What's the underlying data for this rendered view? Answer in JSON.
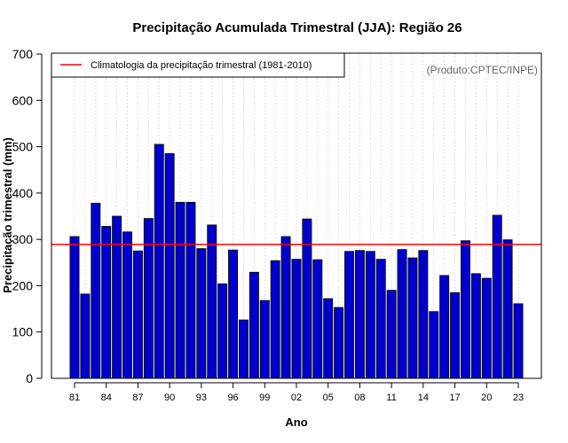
{
  "chart_data": {
    "type": "bar",
    "title": "Precipitação Acumulada Trimestral (JJA): Região 26",
    "xlabel": "Ano",
    "ylabel": "Precipitação trimestral (mm)",
    "ylim": [
      0,
      700
    ],
    "yticks": [
      0,
      100,
      200,
      300,
      400,
      500,
      600,
      700
    ],
    "years": [
      1981,
      1982,
      1983,
      1984,
      1985,
      1986,
      1987,
      1988,
      1989,
      1990,
      1991,
      1992,
      1993,
      1994,
      1995,
      1996,
      1997,
      1998,
      1999,
      2000,
      2001,
      2002,
      2003,
      2004,
      2005,
      2006,
      2007,
      2008,
      2009,
      2010,
      2011,
      2012,
      2013,
      2014,
      2015,
      2016,
      2017,
      2018,
      2019,
      2020,
      2021,
      2022,
      2023
    ],
    "values": [
      306,
      182,
      378,
      328,
      350,
      316,
      275,
      345,
      505,
      485,
      380,
      380,
      280,
      331,
      204,
      277,
      126,
      229,
      168,
      254,
      306,
      257,
      344,
      256,
      172,
      153,
      274,
      276,
      274,
      257,
      190,
      278,
      260,
      276,
      144,
      222,
      185,
      297,
      226,
      216,
      352,
      299,
      161
    ],
    "xtick_years": [
      1981,
      1984,
      1987,
      1990,
      1993,
      1996,
      1999,
      2002,
      2005,
      2008,
      2011,
      2014,
      2017,
      2020,
      2023
    ],
    "xtick_labels": [
      "81",
      "84",
      "87",
      "90",
      "93",
      "96",
      "99",
      "02",
      "05",
      "08",
      "11",
      "14",
      "17",
      "20",
      "23"
    ],
    "climatology": 289,
    "legend": "Climatologia da precipitação trimestral (1981-2010)",
    "source": "(Produto:CPTEC/INPE)",
    "colors": {
      "bar": "#0000cc",
      "bar_edge": "#000000",
      "climatology": "#ff0000",
      "grid": "#cccccc"
    }
  }
}
